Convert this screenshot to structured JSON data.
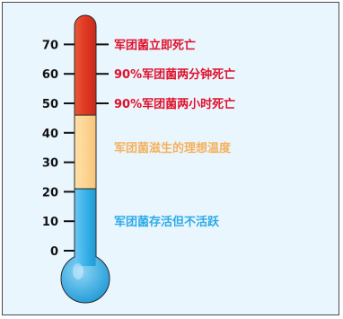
{
  "scale": {
    "ticks": [
      {
        "value": 70,
        "label": "70"
      },
      {
        "value": 60,
        "label": "60"
      },
      {
        "value": 50,
        "label": "50"
      },
      {
        "value": 40,
        "label": "40"
      },
      {
        "value": 30,
        "label": "30"
      },
      {
        "value": 20,
        "label": "20"
      },
      {
        "value": 10,
        "label": "10"
      },
      {
        "value": 0,
        "label": "0"
      }
    ]
  },
  "zones": [
    {
      "name": "death-zone",
      "from": 46,
      "to": 75,
      "color": "#e23a25"
    },
    {
      "name": "growth-zone",
      "from": 21,
      "to": 46,
      "color": "#fdd595"
    },
    {
      "name": "survival-zone",
      "from": -8,
      "to": 21,
      "color": "#3bb3ea"
    }
  ],
  "annotations": [
    {
      "value": 70,
      "text": "军团菌立即死亡",
      "color": "#e0102a",
      "connector": true
    },
    {
      "value": 60,
      "text": "90%军团菌两分钟死亡",
      "color": "#e0102a",
      "connector": true
    },
    {
      "value": 50,
      "text": "90%军团菌两小时死亡",
      "color": "#e0102a",
      "connector": true
    },
    {
      "value": 35,
      "text": "军团菌滋生的理想温度",
      "color": "#f5b15c",
      "connector": false
    },
    {
      "value": 10,
      "text": "军团菌存活但不活跃",
      "color": "#2aaae8",
      "connector": false
    }
  ]
}
